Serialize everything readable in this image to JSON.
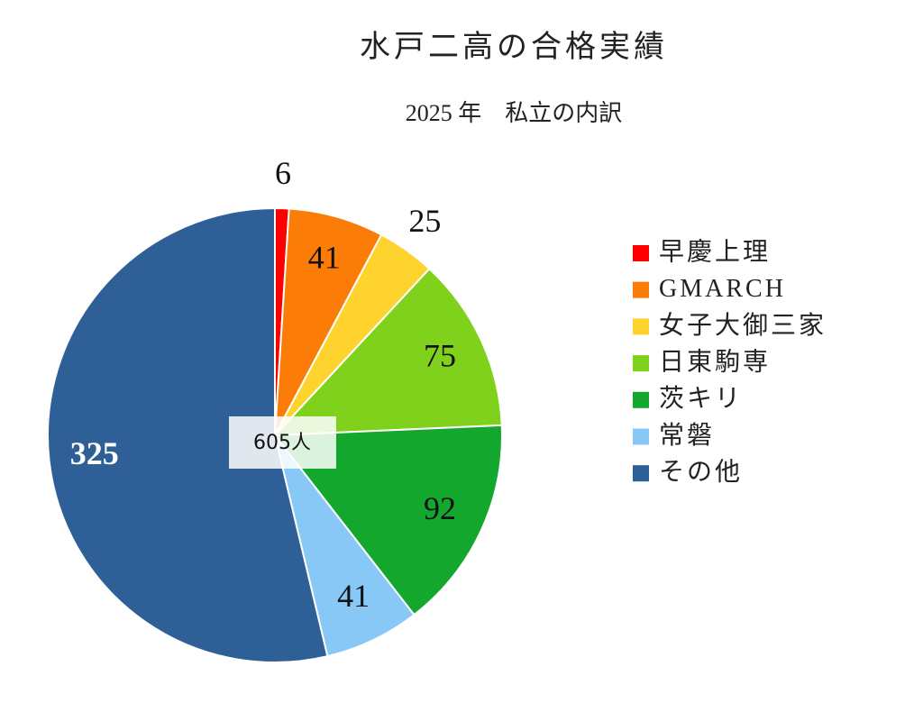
{
  "chart_data": {
    "type": "pie",
    "title": "水戸二高の合格実績",
    "subtitle": "2025 年　私立の内訳",
    "center_label": "605人",
    "categories": [
      "早慶上理",
      "GMARCH",
      "女子大御三家",
      "日東駒専",
      "茨キリ",
      "常磐",
      "その他"
    ],
    "values": [
      6,
      41,
      25,
      75,
      92,
      41,
      325
    ],
    "colors": [
      "#ff0000",
      "#fb7d07",
      "#ffd32e",
      "#80d11b",
      "#13a82d",
      "#87c8f7",
      "#2e5f96"
    ],
    "legend": "right"
  }
}
